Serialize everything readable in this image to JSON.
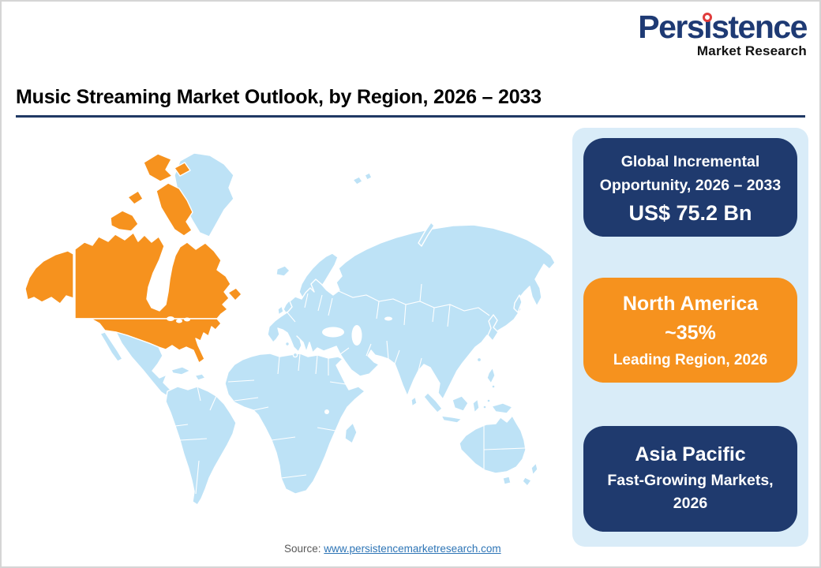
{
  "theme": {
    "navy": "#1f3a6e",
    "orange": "#f6921e",
    "map_blue": "#bde2f6",
    "panel_blue": "#d9ecf8",
    "rule_navy": "#1f3864",
    "link_blue": "#2e75b6",
    "logo_blue": "#1e3a74",
    "logo_dot_red": "#e03c3c",
    "source_gray": "#595959"
  },
  "logo": {
    "text": "Persistence",
    "subtext": "Market Research"
  },
  "header": {
    "title": "Music Streaming Market Outlook, by Region, 2026 – 2033"
  },
  "chart_data": {
    "type": "map",
    "title": "Music Streaming Market Outlook, by Region, 2026 – 2033",
    "highlighted_region": "North America",
    "highlight_color": "#f6921e",
    "base_color": "#bde2f6",
    "annotations": [
      {
        "label": "Global Incremental Opportunity, 2026 – 2033",
        "value": "US$ 75.2 Bn"
      },
      {
        "region": "North America",
        "value": "~35%",
        "note": "Leading Region, 2026"
      },
      {
        "region": "Asia Pacific",
        "note": "Fast-Growing Markets, 2026"
      }
    ]
  },
  "cards": {
    "global": {
      "line1": "Global Incremental",
      "line2": "Opportunity, 2026 – 2033",
      "value": "US$ 75.2 Bn"
    },
    "north_america": {
      "title": "North America",
      "value": "~35%",
      "subtitle": "Leading Region, 2026"
    },
    "asia_pacific": {
      "title": "Asia Pacific",
      "line1": "Fast-Growing Markets,",
      "line2": "2026"
    }
  },
  "footer": {
    "source_label": "Source:",
    "source_link": "www.persistencemarketresearch.com"
  }
}
